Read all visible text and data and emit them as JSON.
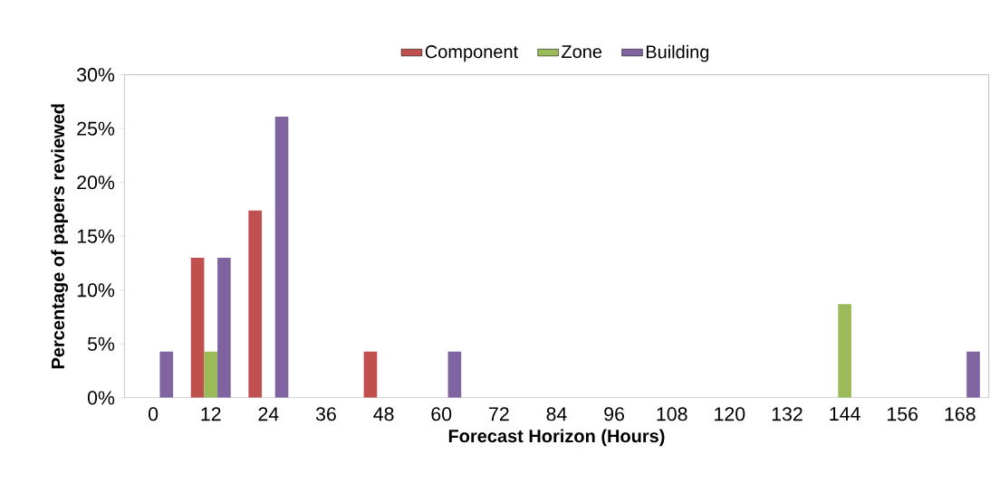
{
  "chart_data": {
    "type": "bar",
    "xlabel": "Forecast Horizon (Hours)",
    "ylabel": "Percentage of papers reviewed",
    "categories": [
      "0",
      "12",
      "24",
      "36",
      "48",
      "60",
      "72",
      "84",
      "96",
      "108",
      "120",
      "132",
      "144",
      "156",
      "168"
    ],
    "series": [
      {
        "name": "Component",
        "color": "#c0504d",
        "values": [
          null,
          13.0,
          17.4,
          null,
          4.3,
          null,
          null,
          null,
          null,
          null,
          null,
          null,
          null,
          null,
          null
        ]
      },
      {
        "name": "Zone",
        "color": "#9bbb59",
        "values": [
          null,
          4.3,
          null,
          null,
          null,
          null,
          null,
          null,
          null,
          null,
          null,
          null,
          8.7,
          null,
          null
        ]
      },
      {
        "name": "Building",
        "color": "#8064a2",
        "values": [
          4.3,
          13.0,
          26.1,
          null,
          null,
          4.3,
          null,
          null,
          null,
          null,
          null,
          null,
          null,
          null,
          4.3
        ]
      }
    ],
    "ylim": [
      0,
      30
    ],
    "yticks": [
      {
        "value": 0,
        "label": "0%"
      },
      {
        "value": 5,
        "label": "5%"
      },
      {
        "value": 10,
        "label": "10%"
      },
      {
        "value": 15,
        "label": "15%"
      },
      {
        "value": 20,
        "label": "20%"
      },
      {
        "value": 25,
        "label": "25%"
      },
      {
        "value": 30,
        "label": "30%"
      }
    ],
    "grid": false,
    "legend": "top"
  }
}
